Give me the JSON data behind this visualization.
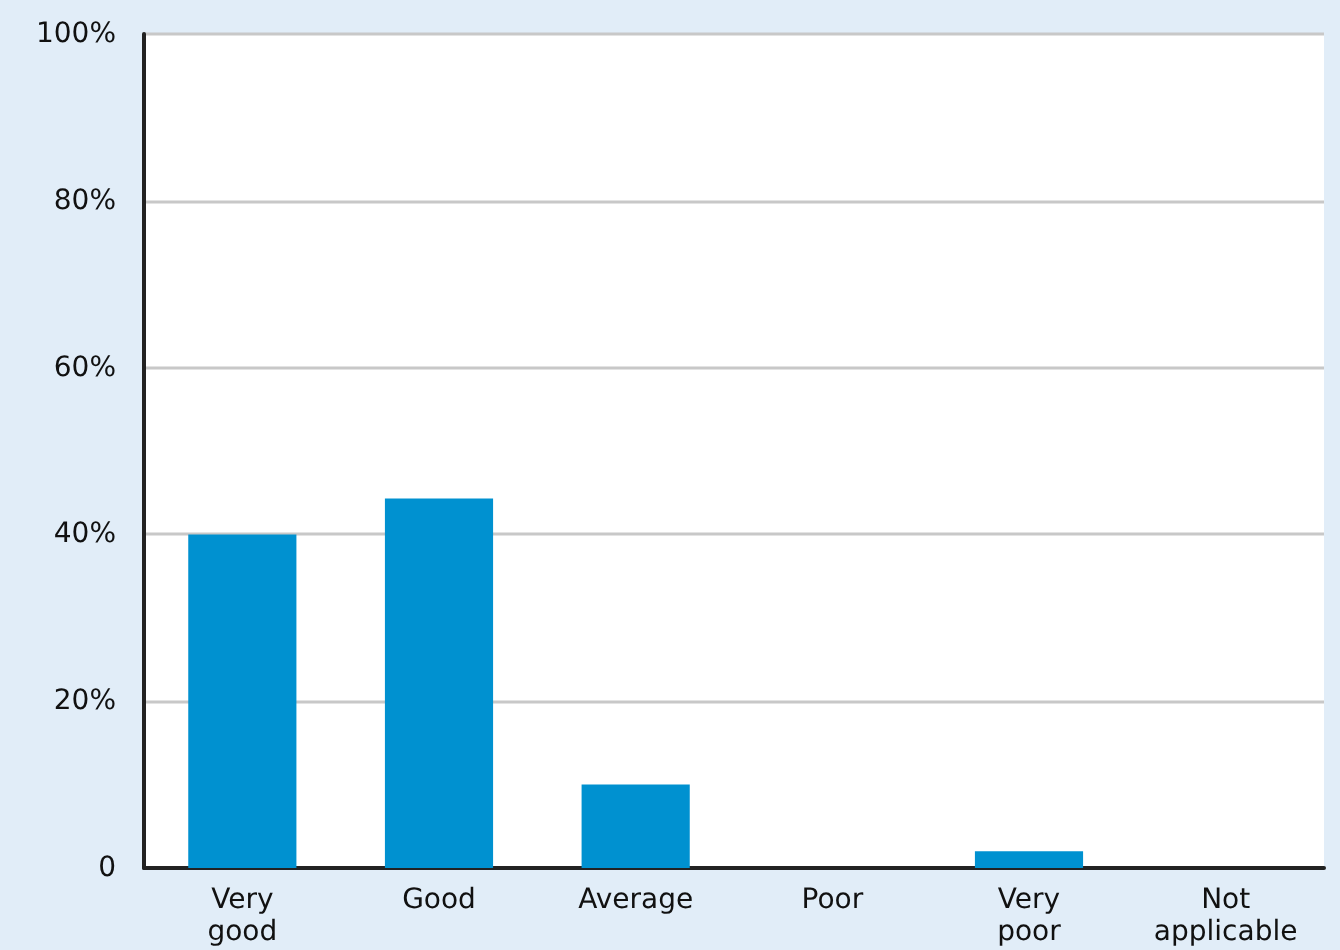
{
  "chart_data": {
    "type": "bar",
    "categories": [
      "Very\ngood",
      "Good",
      "Average",
      "Poor",
      "Very\npoor",
      "Not\napplicable"
    ],
    "values": [
      40,
      44.3,
      10,
      0,
      2,
      0
    ],
    "color": "#0091d0",
    "ylim": [
      0,
      100
    ],
    "yticks": [
      {
        "value": 0,
        "label": "0"
      },
      {
        "value": 20,
        "label": "20%"
      },
      {
        "value": 40,
        "label": "40%"
      },
      {
        "value": 60,
        "label": "60%"
      },
      {
        "value": 80,
        "label": "80%"
      },
      {
        "value": 100,
        "label": "100%"
      }
    ],
    "grid": "y"
  }
}
